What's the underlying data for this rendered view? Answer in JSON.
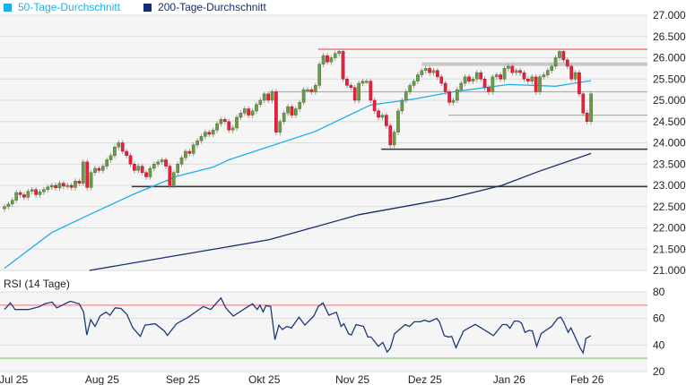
{
  "legend": [
    {
      "label": "50-Tage-Durchschnitt",
      "color": "#1ab0e8"
    },
    {
      "label": "200-Tage-Durchschnitt",
      "color": "#172d6b"
    }
  ],
  "chart_data": {
    "type": "candlestick",
    "x_unit": "trading day index",
    "ylim": [
      21000,
      27000
    ],
    "y_ticks": [
      21000,
      21500,
      22000,
      22500,
      23000,
      23500,
      24000,
      24500,
      25000,
      25500,
      26000,
      26500,
      27000
    ],
    "y_tick_labels": [
      "21.000",
      "21.500",
      "22.000",
      "22.500",
      "23.000",
      "23.500",
      "24.000",
      "24.500",
      "25.000",
      "25.500",
      "26.000",
      "26.500",
      "27.000"
    ],
    "x_ticks": [
      {
        "label": "Jul 25",
        "idx": 2.3
      },
      {
        "label": "Aug 25",
        "idx": 24.8
      },
      {
        "label": "Sep 25",
        "idx": 45.3
      },
      {
        "label": "Okt 25",
        "idx": 66
      },
      {
        "label": "Nov 25",
        "idx": 88.4
      },
      {
        "label": "Dez 25",
        "idx": 106.8
      },
      {
        "label": "Jan 26",
        "idx": 128.2
      },
      {
        "label": "Feb 26",
        "idx": 148
      }
    ],
    "first_open": 22450,
    "closes": [
      22500,
      22560,
      22650,
      22830,
      22780,
      22720,
      22860,
      22900,
      22780,
      22850,
      22900,
      22960,
      23000,
      22940,
      23050,
      22980,
      23000,
      22950,
      23100,
      23050,
      23550,
      22950,
      23300,
      23400,
      23350,
      23450,
      23600,
      23700,
      23900,
      24000,
      23800,
      23700,
      23500,
      23350,
      23450,
      23300,
      23200,
      23400,
      23500,
      23550,
      23600,
      23450,
      23000,
      23300,
      23500,
      23650,
      23800,
      23750,
      23950,
      24050,
      24150,
      24250,
      24200,
      24300,
      24450,
      24550,
      24500,
      24300,
      24350,
      24600,
      24700,
      24800,
      24650,
      24750,
      24900,
      25000,
      25150,
      25000,
      25200,
      24250,
      24500,
      24700,
      24850,
      24650,
      24800,
      24950,
      25250,
      25250,
      25200,
      25350,
      25850,
      26050,
      25900,
      26000,
      26100,
      26150,
      25500,
      25350,
      25300,
      25000,
      25400,
      25450,
      25450,
      25000,
      24750,
      24600,
      24650,
      24400,
      23950,
      24250,
      24750,
      25000,
      25200,
      25350,
      25450,
      25600,
      25700,
      25750,
      25650,
      25700,
      25550,
      25400,
      25200,
      24950,
      25000,
      25250,
      25400,
      25550,
      25450,
      25500,
      25650,
      25500,
      25300,
      25200,
      25550,
      25600,
      25500,
      25750,
      25800,
      25650,
      25700,
      25650,
      25500,
      25450,
      25550,
      25200,
      25550,
      25600,
      25700,
      25800,
      26000,
      26150,
      25950,
      25800,
      25500,
      25650,
      25150,
      24700,
      24500,
      25150
    ],
    "series": [
      {
        "name": "50-Tage-Durchschnitt",
        "points": [
          [
            0,
            21050
          ],
          [
            12,
            21890
          ],
          [
            22,
            22330
          ],
          [
            33,
            22800
          ],
          [
            44,
            23220
          ],
          [
            53,
            23430
          ],
          [
            57,
            23600
          ],
          [
            79,
            24270
          ],
          [
            93,
            24890
          ],
          [
            104,
            25030
          ],
          [
            114,
            25200
          ],
          [
            128,
            25370
          ],
          [
            140,
            25330
          ],
          [
            149,
            25460
          ]
        ]
      },
      {
        "name": "200-Tage-Durchschnitt",
        "points": [
          [
            21.6,
            21000
          ],
          [
            44.4,
            21360
          ],
          [
            67.2,
            21720
          ],
          [
            90,
            22310
          ],
          [
            112.8,
            22690
          ],
          [
            126.4,
            23000
          ],
          [
            135.5,
            23320
          ],
          [
            149,
            23750
          ]
        ]
      }
    ],
    "levels": [
      {
        "value": 26200,
        "from_idx": 79.7,
        "color": "#f06060",
        "kind": "resistance"
      },
      {
        "value": 25850,
        "from_idx": 106,
        "color": "#c8c8c8",
        "kind": "zone"
      },
      {
        "value": 25200,
        "from_idx": 67.2,
        "color": "#b0b0b0",
        "kind": "line"
      },
      {
        "value": 24650,
        "from_idx": 112.8,
        "color": "#b0b0b0",
        "kind": "line"
      },
      {
        "value": 23850,
        "from_idx": 95.7,
        "color": "#333333",
        "kind": "support"
      },
      {
        "value": 22970,
        "from_idx": 32.3,
        "color": "#333333",
        "kind": "support"
      }
    ],
    "colors": {
      "up": "#6b9a4b",
      "down": "#e8203a",
      "wick": "#9a9a9a"
    },
    "rsi": {
      "title": "RSI (14 Tage)",
      "ylim": [
        20,
        80
      ],
      "y_ticks": [
        20,
        40,
        60,
        80
      ],
      "overbought": 70,
      "oversold": 30,
      "points": [
        [
          0,
          66.7
        ],
        [
          1.5,
          71.7
        ],
        [
          2.7,
          66.7
        ],
        [
          6.1,
          66.7
        ],
        [
          8.7,
          68.7
        ],
        [
          10.2,
          71
        ],
        [
          12.1,
          72.4
        ],
        [
          13.3,
          68
        ],
        [
          16.7,
          73
        ],
        [
          19,
          71
        ],
        [
          20.1,
          64.8
        ],
        [
          20.9,
          47.6
        ],
        [
          21.9,
          59
        ],
        [
          23,
          54
        ],
        [
          24.3,
          62
        ],
        [
          25.8,
          64.7
        ],
        [
          26.8,
          62.4
        ],
        [
          28.1,
          68
        ],
        [
          29.6,
          67.5
        ],
        [
          31.1,
          63
        ],
        [
          32.6,
          53
        ],
        [
          34.5,
          46.5
        ],
        [
          35.7,
          55
        ],
        [
          38.3,
          56
        ],
        [
          40.6,
          50.6
        ],
        [
          41.4,
          47.2
        ],
        [
          43.7,
          56
        ],
        [
          46.7,
          61
        ],
        [
          50.5,
          69
        ],
        [
          52.4,
          66.7
        ],
        [
          55,
          75.4
        ],
        [
          56.2,
          68
        ],
        [
          58.1,
          61.8
        ],
        [
          61.9,
          69
        ],
        [
          63,
          71
        ],
        [
          64.2,
          66.7
        ],
        [
          64.9,
          70
        ],
        [
          65.7,
          65
        ],
        [
          66.4,
          69.7
        ],
        [
          67.6,
          69
        ],
        [
          68.7,
          44
        ],
        [
          69.7,
          55
        ],
        [
          70.6,
          51.7
        ],
        [
          71.7,
          54
        ],
        [
          72.9,
          52.8
        ],
        [
          74.8,
          61
        ],
        [
          76.3,
          55
        ],
        [
          78.6,
          62
        ],
        [
          79.7,
          69
        ],
        [
          80.9,
          71.7
        ],
        [
          82.4,
          62.5
        ],
        [
          84.3,
          64.7
        ],
        [
          85.5,
          54
        ],
        [
          86.2,
          56
        ],
        [
          87.4,
          48.5
        ],
        [
          88.1,
          47.6
        ],
        [
          89.3,
          55.4
        ],
        [
          91.2,
          54
        ],
        [
          92.3,
          46
        ],
        [
          93.1,
          46
        ],
        [
          95,
          39
        ],
        [
          96.1,
          42
        ],
        [
          97.2,
          34.7
        ],
        [
          98,
          37.5
        ],
        [
          99.1,
          48.5
        ],
        [
          101.8,
          55.4
        ],
        [
          102.9,
          54
        ],
        [
          104.1,
          57.5
        ],
        [
          105.6,
          57.5
        ],
        [
          106.7,
          58.7
        ],
        [
          107.9,
          57.5
        ],
        [
          109.8,
          60
        ],
        [
          110.5,
          57.5
        ],
        [
          111.7,
          47
        ],
        [
          112.8,
          46
        ],
        [
          113.6,
          46.5
        ],
        [
          114.7,
          38
        ],
        [
          116.6,
          50.6
        ],
        [
          119.6,
          55.5
        ],
        [
          122.3,
          50.6
        ],
        [
          124.2,
          47
        ],
        [
          126.5,
          55.4
        ],
        [
          127.6,
          55.4
        ],
        [
          128.4,
          52.6
        ],
        [
          129.5,
          58
        ],
        [
          130.6,
          58
        ],
        [
          131.4,
          56.3
        ],
        [
          132.2,
          49.5
        ],
        [
          133.3,
          51
        ],
        [
          134.1,
          50.6
        ],
        [
          135.2,
          39
        ],
        [
          136.3,
          48.5
        ],
        [
          137.5,
          51
        ],
        [
          139,
          54
        ],
        [
          140.5,
          60
        ],
        [
          141.3,
          61
        ],
        [
          142,
          57.5
        ],
        [
          143.2,
          49.5
        ],
        [
          143.9,
          53
        ],
        [
          146.2,
          38
        ],
        [
          147,
          34
        ],
        [
          147.7,
          44.8
        ],
        [
          148.9,
          47
        ]
      ]
    }
  }
}
